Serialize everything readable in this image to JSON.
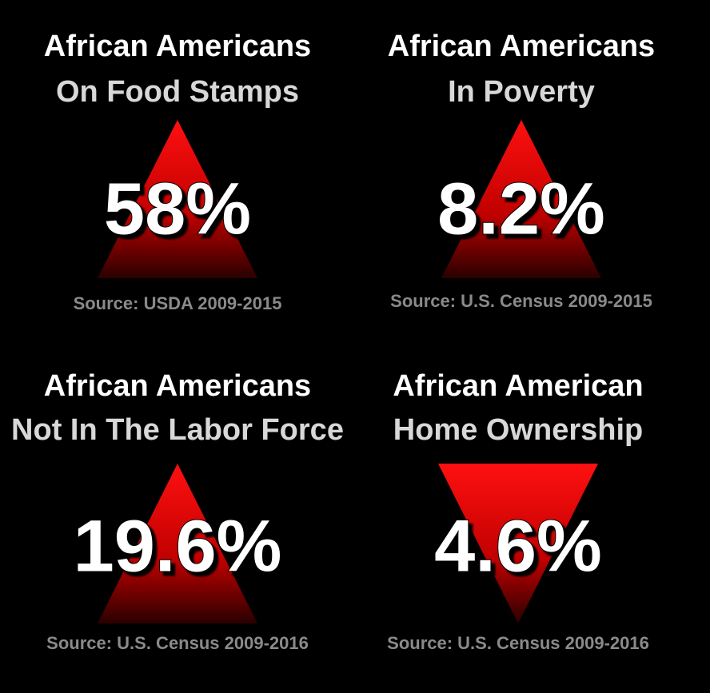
{
  "panels": [
    {
      "title": [
        "African Americans",
        "On Food Stamps"
      ],
      "value": "58%",
      "source": "Source: USDA 2009-2015",
      "arrow": "up"
    },
    {
      "title": [
        "African Americans",
        "In Poverty"
      ],
      "value": "8.2%",
      "source": "Source: U.S. Census 2009-2015",
      "arrow": "up"
    },
    {
      "title": [
        "African Americans",
        "Not In The Labor Force"
      ],
      "value": "19.6%",
      "source": "Source: U.S. Census 2009-2016",
      "arrow": "up"
    },
    {
      "title": [
        "African American",
        "Home Ownership"
      ],
      "value": "4.6%",
      "source": "Source: U.S. Census 2009-2016",
      "arrow": "down"
    }
  ]
}
